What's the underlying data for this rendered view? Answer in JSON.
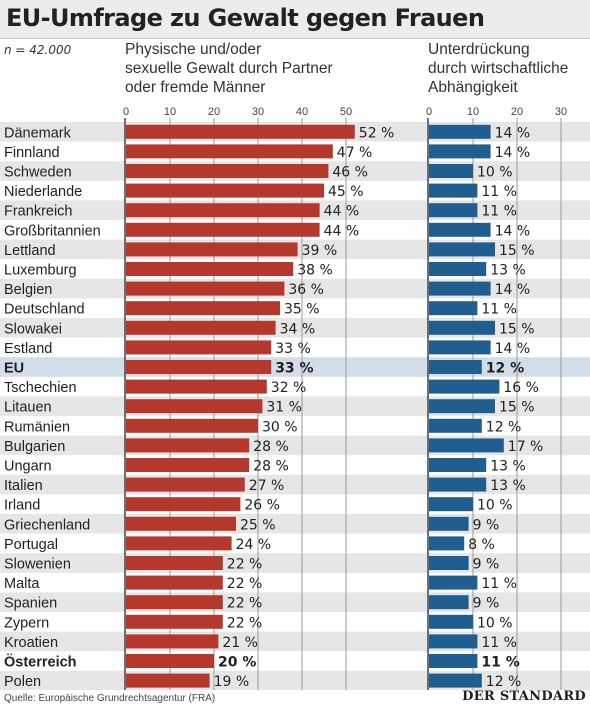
{
  "title": "EU-Umfrage zu Gewalt gegen Frauen",
  "sample": "n = 42.000",
  "source": "Quelle: Europäische Grundrechtsagentur (FRA)",
  "brand": "DER STANDARD",
  "colors": {
    "left_bar": "#b5382d",
    "right_bar": "#1f5e8e",
    "row_alt": "#e6e6e6",
    "row_highlight": "#d3dde8",
    "axis_line": "#444444",
    "grid": "#9a9a9a"
  },
  "chart_data": [
    {
      "type": "bar",
      "orientation": "horizontal",
      "title_lines": [
        "Physische und/oder",
        "sexuelle Gewalt durch Partner",
        "oder fremde Männer"
      ],
      "xlim": [
        0,
        55
      ],
      "xticks": [
        0,
        10,
        20,
        30,
        40,
        50
      ],
      "value_suffix": " %",
      "categories": [
        "Dänemark",
        "Finnland",
        "Schweden",
        "Niederlande",
        "Frankreich",
        "Großbritannien",
        "Lettland",
        "Luxemburg",
        "Belgien",
        "Deutschland",
        "Slowakei",
        "Estland",
        "EU",
        "Tschechien",
        "Litauen",
        "Rumänien",
        "Bulgarien",
        "Ungarn",
        "Italien",
        "Irland",
        "Griechenland",
        "Portugal",
        "Slowenien",
        "Malta",
        "Spanien",
        "Zypern",
        "Kroatien",
        "Österreich",
        "Polen"
      ],
      "values": [
        52,
        47,
        46,
        45,
        44,
        44,
        39,
        38,
        36,
        35,
        34,
        33,
        33,
        32,
        31,
        30,
        28,
        28,
        27,
        26,
        25,
        24,
        22,
        22,
        22,
        22,
        21,
        20,
        19
      ],
      "highlight": [
        "EU"
      ],
      "bold": [
        "EU",
        "Österreich"
      ]
    },
    {
      "type": "bar",
      "orientation": "horizontal",
      "title_lines": [
        "Unterdrückung",
        "durch wirtschaftliche",
        "Abhängigkeit"
      ],
      "xlim": [
        0,
        30
      ],
      "xticks": [
        0,
        10,
        20,
        30
      ],
      "value_suffix": " %",
      "categories": [
        "Dänemark",
        "Finnland",
        "Schweden",
        "Niederlande",
        "Frankreich",
        "Großbritannien",
        "Lettland",
        "Luxemburg",
        "Belgien",
        "Deutschland",
        "Slowakei",
        "Estland",
        "EU",
        "Tschechien",
        "Litauen",
        "Rumänien",
        "Bulgarien",
        "Ungarn",
        "Italien",
        "Irland",
        "Griechenland",
        "Portugal",
        "Slowenien",
        "Malta",
        "Spanien",
        "Zypern",
        "Kroatien",
        "Österreich",
        "Polen"
      ],
      "values": [
        14,
        14,
        10,
        11,
        11,
        14,
        15,
        13,
        14,
        11,
        15,
        14,
        12,
        16,
        15,
        12,
        17,
        13,
        13,
        10,
        9,
        8,
        9,
        11,
        9,
        10,
        11,
        11,
        12
      ],
      "highlight": [
        "EU"
      ],
      "bold": [
        "EU",
        "Österreich"
      ]
    }
  ]
}
